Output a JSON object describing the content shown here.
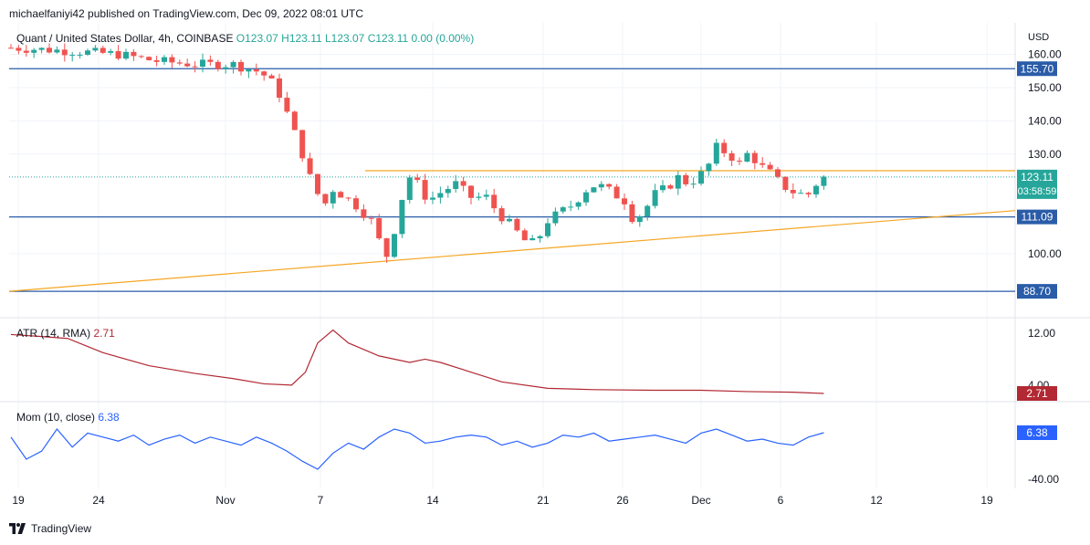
{
  "header": {
    "published": "michaelfaniyi42 published on TradingView.com, Dec 09, 2022 08:01 UTC"
  },
  "ticker": {
    "symbol": "Quant / United States Dollar, 4h, COINBASE",
    "ohlc": "O123.07  H123.11  L123.07  C123.11  0.00 (0.00%)"
  },
  "footer": {
    "brand": "TradingView"
  },
  "colors": {
    "up": "#26a69a",
    "down": "#ef5350",
    "level": "#2a5ca8",
    "trend": "#f5a623",
    "atr": "#b22833",
    "mom": "#2962ff"
  },
  "chart_data": [
    {
      "type": "candlestick",
      "currency": "USD",
      "y_ticks": [
        "160.00",
        "150.00",
        "140.00",
        "130.00",
        "100.00"
      ],
      "x_ticks": [
        "19",
        "24",
        "Nov",
        "7",
        "14",
        "21",
        "26",
        "Dec",
        "6",
        "12",
        "19"
      ],
      "horizontal_levels": [
        {
          "value": 155.7,
          "label": "155.70"
        },
        {
          "value": 111.09,
          "label": "111.09"
        },
        {
          "value": 88.7,
          "label": "88.70"
        }
      ],
      "resistance_line": 125,
      "trend_line": {
        "from": 88.7,
        "to": 113
      },
      "last_price": {
        "value": 123.11,
        "label": "123.11",
        "countdown": "03:58:59"
      },
      "close_path": [
        [
          0,
          162
        ],
        [
          4,
          161
        ],
        [
          7,
          160
        ],
        [
          9.5,
          158
        ],
        [
          12,
          157
        ],
        [
          14.5,
          157
        ],
        [
          16,
          155
        ],
        [
          16.8,
          153
        ],
        [
          17.5,
          148
        ],
        [
          18.2,
          140
        ],
        [
          19,
          130
        ],
        [
          19.5,
          123
        ],
        [
          20,
          118
        ],
        [
          20.3,
          112
        ],
        [
          20.8,
          120
        ],
        [
          21.5,
          118
        ],
        [
          22.4,
          115
        ],
        [
          23.5,
          110
        ],
        [
          24,
          104
        ],
        [
          24.4,
          98
        ],
        [
          24.8,
          104
        ],
        [
          25.3,
          112
        ],
        [
          25.8,
          124
        ],
        [
          26.5,
          121
        ],
        [
          27.2,
          116
        ],
        [
          28.2,
          119
        ],
        [
          29,
          121
        ],
        [
          30,
          117
        ],
        [
          31,
          117
        ],
        [
          31.8,
          112
        ],
        [
          32.5,
          109
        ],
        [
          33.5,
          104
        ],
        [
          34.2,
          103
        ],
        [
          35,
          110
        ],
        [
          36,
          113
        ],
        [
          36.7,
          115
        ],
        [
          37.4,
          119
        ],
        [
          38.2,
          121
        ],
        [
          39,
          119
        ],
        [
          40,
          116
        ],
        [
          40.6,
          110
        ],
        [
          41.3,
          113
        ],
        [
          42,
          118
        ],
        [
          42.8,
          120
        ],
        [
          43.5,
          123
        ],
        [
          44.2,
          121
        ],
        [
          45,
          124
        ],
        [
          45.7,
          128
        ],
        [
          46,
          132
        ],
        [
          46.8,
          130
        ],
        [
          47.5,
          127
        ],
        [
          48,
          130
        ],
        [
          48.6,
          128
        ],
        [
          49,
          126
        ],
        [
          49.6,
          124
        ],
        [
          50.2,
          121
        ],
        [
          50.8,
          119
        ],
        [
          51.4,
          118
        ],
        [
          52,
          118
        ],
        [
          52.5,
          121
        ],
        [
          53,
          123
        ]
      ]
    },
    {
      "type": "line",
      "name": "ATR (14, RMA)",
      "value_label": "2.71",
      "y_ticks": [
        "12.00",
        "4.00"
      ],
      "x": [
        0,
        2,
        3.7,
        6,
        9,
        12,
        14.5,
        16.5,
        18.3,
        19.2,
        20,
        21,
        22,
        24,
        26,
        27,
        28,
        30,
        32,
        35,
        38,
        42,
        45,
        48,
        51,
        53
      ],
      "y": [
        11.8,
        11.5,
        11.2,
        9,
        7,
        5.8,
        5.0,
        4.2,
        4.0,
        6,
        10.5,
        12.5,
        10.5,
        8.5,
        7.5,
        8.0,
        7.5,
        6,
        4.5,
        3.5,
        3.3,
        3.2,
        3.2,
        3.0,
        2.9,
        2.71
      ]
    },
    {
      "type": "line",
      "name": "Mom (10, close)",
      "value_label": "6.38",
      "y_ticks": [
        "-40.00"
      ],
      "x": [
        0,
        1,
        2,
        3,
        4,
        5,
        6,
        7,
        8,
        9,
        10,
        11,
        12,
        13,
        14,
        15,
        16,
        17,
        18,
        19,
        20,
        21,
        22,
        23,
        24,
        25,
        26,
        27,
        28,
        29,
        30,
        31,
        32,
        33,
        34,
        35,
        36,
        37,
        38,
        39,
        40,
        41,
        42,
        43,
        44,
        45,
        46,
        47,
        48,
        49,
        50,
        51,
        52,
        53
      ],
      "y": [
        2,
        -20,
        -12,
        10,
        -8,
        6,
        2,
        -2,
        4,
        -6,
        0,
        4,
        -4,
        2,
        -2,
        -6,
        2,
        -4,
        -12,
        -22,
        -30,
        -14,
        -4,
        -10,
        2,
        10,
        6,
        -4,
        -2,
        2,
        4,
        2,
        -6,
        -2,
        -8,
        -4,
        4,
        2,
        6,
        -2,
        0,
        2,
        4,
        0,
        -4,
        6,
        10,
        4,
        -2,
        0,
        -4,
        -6,
        2,
        6.38
      ]
    }
  ]
}
